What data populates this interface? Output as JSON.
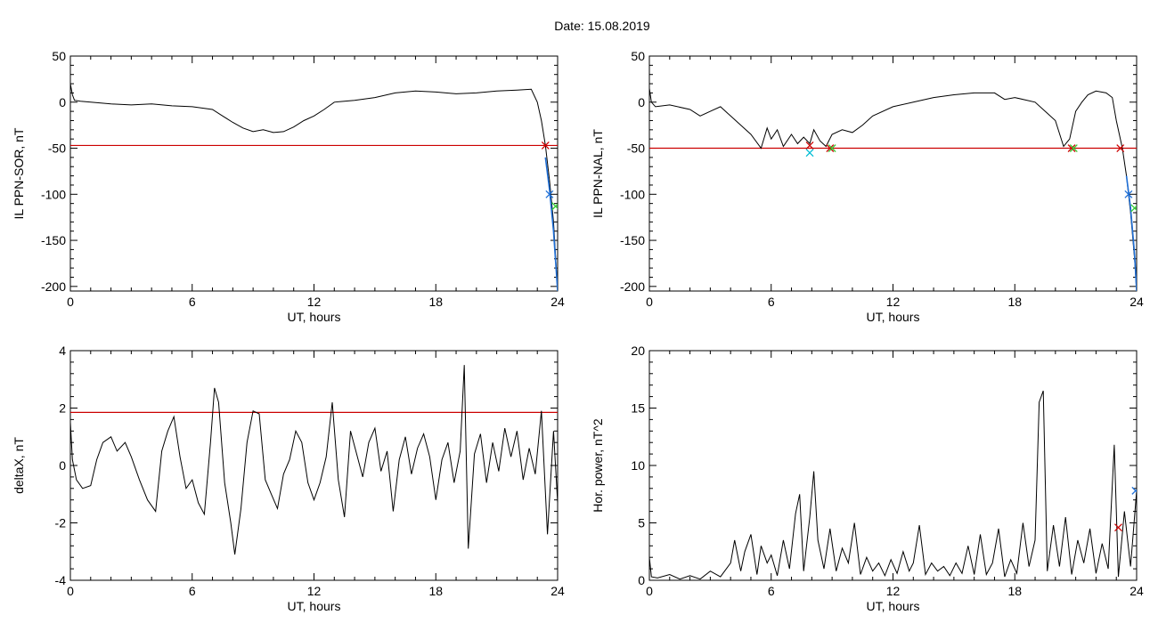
{
  "header": {
    "title": "Date:  15.08.2019"
  },
  "colors": {
    "line": "#000000",
    "threshold": "#cc0000",
    "marker_red": "#cc0000",
    "marker_green": "#33cc33",
    "marker_blue": "#1f6fd6",
    "marker_cyan": "#00bcd4"
  },
  "chart_data": [
    {
      "type": "line",
      "title": "",
      "xlabel": "UT, hours",
      "ylabel": "IL PPN-SOR, nT",
      "xlim": [
        0,
        24
      ],
      "ylim": [
        -205,
        50
      ],
      "xticks": [
        0,
        6,
        12,
        18,
        24
      ],
      "yticks": [
        50,
        0,
        -50,
        -100,
        -150,
        -200
      ],
      "grid": false,
      "threshold": -47,
      "series": [
        {
          "color": "#000000",
          "x": [
            0,
            0.1,
            0.2,
            0.5,
            1,
            2,
            3,
            4,
            5,
            6,
            7,
            7.5,
            8,
            8.5,
            9,
            9.5,
            10,
            10.5,
            11,
            11.5,
            12,
            12.5,
            13,
            14,
            15,
            16,
            17,
            18,
            19,
            20,
            21,
            22,
            22.7,
            23,
            23.2,
            23.4,
            23.6,
            23.8,
            24
          ],
          "y": [
            20,
            8,
            2,
            1,
            0,
            -2,
            -3,
            -2,
            -4,
            -5,
            -8,
            -15,
            -22,
            -28,
            -32,
            -30,
            -33,
            -32,
            -27,
            -20,
            -15,
            -8,
            0,
            2,
            5,
            10,
            12,
            11,
            9,
            10,
            12,
            13,
            14,
            0,
            -20,
            -47,
            -85,
            -130,
            -205
          ]
        },
        {
          "color": "#1f6fd6",
          "x": [
            23.4,
            23.6,
            23.8,
            24
          ],
          "y": [
            -60,
            -95,
            -140,
            -205
          ]
        }
      ],
      "markers": [
        {
          "x": 23.4,
          "y": -47,
          "color": "#cc0000"
        },
        {
          "x": 23.9,
          "y": -113,
          "color": "#33cc33"
        },
        {
          "x": 23.6,
          "y": -100,
          "color": "#1f6fd6"
        }
      ]
    },
    {
      "type": "line",
      "title": "",
      "xlabel": "UT, hours",
      "ylabel": "IL PPN-NAL, nT",
      "xlim": [
        0,
        24
      ],
      "ylim": [
        -205,
        50
      ],
      "xticks": [
        0,
        6,
        12,
        18,
        24
      ],
      "yticks": [
        50,
        0,
        -50,
        -100,
        -150,
        -200
      ],
      "grid": false,
      "threshold": -50,
      "series": [
        {
          "color": "#000000",
          "x": [
            0,
            0.1,
            0.3,
            1,
            2,
            2.5,
            3,
            3.5,
            4,
            4.5,
            5,
            5.5,
            5.8,
            6,
            6.3,
            6.6,
            7,
            7.3,
            7.6,
            7.9,
            8.1,
            8.4,
            8.7,
            9,
            9.5,
            10,
            10.5,
            11,
            12,
            13,
            14,
            15,
            16,
            17,
            17.5,
            18,
            19,
            19.5,
            20,
            20.4,
            20.7,
            21,
            21.3,
            21.6,
            22,
            22.5,
            22.8,
            23,
            23.3,
            23.5,
            23.7,
            23.9,
            24
          ],
          "y": [
            15,
            0,
            -5,
            -3,
            -8,
            -15,
            -10,
            -5,
            -15,
            -25,
            -35,
            -50,
            -28,
            -40,
            -30,
            -48,
            -35,
            -45,
            -38,
            -45,
            -30,
            -42,
            -48,
            -35,
            -30,
            -33,
            -25,
            -15,
            -5,
            0,
            5,
            8,
            10,
            10,
            3,
            5,
            0,
            -10,
            -20,
            -48,
            -40,
            -10,
            0,
            8,
            12,
            10,
            5,
            -20,
            -50,
            -80,
            -120,
            -170,
            -205
          ]
        },
        {
          "color": "#1f6fd6",
          "x": [
            23.5,
            23.7,
            23.9,
            24
          ],
          "y": [
            -80,
            -115,
            -165,
            -205
          ]
        }
      ],
      "markers": [
        {
          "x": 7.9,
          "y": -47,
          "color": "#cc0000"
        },
        {
          "x": 8.9,
          "y": -50,
          "color": "#cc0000"
        },
        {
          "x": 20.8,
          "y": -50,
          "color": "#cc0000"
        },
        {
          "x": 23.2,
          "y": -50,
          "color": "#cc0000"
        },
        {
          "x": 7.9,
          "y": -55,
          "color": "#00bcd4"
        },
        {
          "x": 9.0,
          "y": -50,
          "color": "#33cc33"
        },
        {
          "x": 20.9,
          "y": -50,
          "color": "#33cc33"
        },
        {
          "x": 23.9,
          "y": -115,
          "color": "#33cc33"
        },
        {
          "x": 23.6,
          "y": -100,
          "color": "#1f6fd6"
        }
      ]
    },
    {
      "type": "line",
      "title": "",
      "xlabel": "UT, hours",
      "ylabel": "deltaX, nT",
      "xlim": [
        0,
        24
      ],
      "ylim": [
        -4,
        4
      ],
      "xticks": [
        0,
        6,
        12,
        18,
        24
      ],
      "yticks": [
        4,
        2,
        0,
        -2,
        -4
      ],
      "grid": false,
      "threshold": 1.85,
      "series": [
        {
          "color": "#000000",
          "x": [
            0,
            0.1,
            0.3,
            0.6,
            1,
            1.3,
            1.6,
            2,
            2.3,
            2.7,
            3,
            3.4,
            3.8,
            4.2,
            4.5,
            4.8,
            5.1,
            5.4,
            5.7,
            6,
            6.3,
            6.6,
            6.9,
            7.1,
            7.3,
            7.6,
            7.9,
            8.1,
            8.4,
            8.7,
            9,
            9.3,
            9.6,
            9.9,
            10.2,
            10.5,
            10.8,
            11.1,
            11.4,
            11.7,
            12,
            12.3,
            12.6,
            12.9,
            13.2,
            13.5,
            13.8,
            14.1,
            14.4,
            14.7,
            15,
            15.3,
            15.6,
            15.9,
            16.2,
            16.5,
            16.8,
            17.1,
            17.4,
            17.7,
            18,
            18.3,
            18.6,
            18.9,
            19.2,
            19.4,
            19.6,
            19.9,
            20.2,
            20.5,
            20.8,
            21.1,
            21.4,
            21.7,
            22,
            22.3,
            22.6,
            22.9,
            23.2,
            23.5,
            23.8,
            24
          ],
          "y": [
            1.5,
            0.2,
            -0.5,
            -0.8,
            -0.7,
            0.2,
            0.8,
            1.0,
            0.5,
            0.8,
            0.3,
            -0.5,
            -1.2,
            -1.6,
            0.5,
            1.2,
            1.7,
            0.3,
            -0.8,
            -0.5,
            -1.3,
            -1.7,
            0.8,
            2.7,
            2.2,
            -0.6,
            -2.0,
            -3.1,
            -1.5,
            0.8,
            1.9,
            1.8,
            -0.5,
            -1.0,
            -1.5,
            -0.3,
            0.2,
            1.2,
            0.8,
            -0.6,
            -1.2,
            -0.6,
            0.3,
            2.2,
            -0.5,
            -1.8,
            1.2,
            0.4,
            -0.4,
            0.8,
            1.3,
            -0.2,
            0.5,
            -1.6,
            0.2,
            1.0,
            -0.3,
            0.6,
            1.1,
            0.3,
            -1.2,
            0.2,
            0.8,
            -0.6,
            0.5,
            3.5,
            -2.9,
            0.4,
            1.1,
            -0.6,
            0.8,
            -0.2,
            1.3,
            0.3,
            1.2,
            -0.5,
            0.6,
            -0.3,
            1.9,
            -2.4,
            1.2,
            -1.3
          ]
        }
      ],
      "markers": []
    },
    {
      "type": "line",
      "title": "",
      "xlabel": "UT, hours",
      "ylabel": "Hor. power, nT^2",
      "xlim": [
        0,
        24
      ],
      "ylim": [
        0,
        20
      ],
      "xticks": [
        0,
        6,
        12,
        18,
        24
      ],
      "yticks": [
        20,
        15,
        10,
        5,
        0
      ],
      "grid": false,
      "series": [
        {
          "color": "#000000",
          "x": [
            0,
            0.1,
            0.4,
            1,
            1.5,
            2,
            2.5,
            3,
            3.5,
            4,
            4.2,
            4.5,
            4.7,
            5,
            5.3,
            5.5,
            5.8,
            6,
            6.3,
            6.6,
            6.9,
            7.2,
            7.4,
            7.6,
            7.9,
            8.1,
            8.3,
            8.6,
            8.9,
            9.2,
            9.5,
            9.8,
            10.1,
            10.4,
            10.7,
            11,
            11.3,
            11.6,
            11.9,
            12.2,
            12.5,
            12.8,
            13,
            13.3,
            13.6,
            13.9,
            14.2,
            14.5,
            14.8,
            15.1,
            15.4,
            15.7,
            16,
            16.3,
            16.6,
            16.9,
            17.2,
            17.5,
            17.8,
            18.1,
            18.4,
            18.7,
            19,
            19.2,
            19.4,
            19.6,
            19.9,
            20.2,
            20.5,
            20.8,
            21.1,
            21.4,
            21.7,
            22,
            22.3,
            22.6,
            22.9,
            23.1,
            23.4,
            23.7,
            24
          ],
          "y": [
            2,
            0.3,
            0.2,
            0.5,
            0.1,
            0.4,
            0.1,
            0.8,
            0.3,
            1.5,
            3.5,
            0.8,
            2.5,
            4.0,
            0.5,
            3.0,
            1.5,
            2.2,
            0.4,
            3.5,
            1.0,
            5.8,
            7.5,
            0.8,
            5.5,
            9.5,
            3.5,
            1.0,
            4.5,
            0.8,
            2.8,
            1.5,
            5.0,
            0.5,
            2.0,
            0.8,
            1.5,
            0.4,
            1.8,
            0.6,
            2.5,
            0.8,
            1.5,
            4.8,
            0.5,
            1.5,
            0.8,
            1.2,
            0.4,
            1.5,
            0.6,
            3.0,
            0.5,
            4.0,
            0.5,
            1.5,
            4.5,
            0.3,
            1.8,
            0.6,
            5.0,
            1.2,
            3.5,
            15.5,
            16.5,
            0.8,
            4.8,
            1.2,
            5.5,
            0.5,
            3.5,
            1.5,
            4.5,
            0.6,
            3.2,
            1.0,
            11.8,
            0.3,
            6.0,
            1.2,
            7.8
          ]
        }
      ],
      "markers": [
        {
          "x": 23.1,
          "y": 4.6,
          "color": "#cc0000"
        },
        {
          "x": 23.95,
          "y": 7.8,
          "color": "#1f6fd6"
        }
      ]
    }
  ]
}
